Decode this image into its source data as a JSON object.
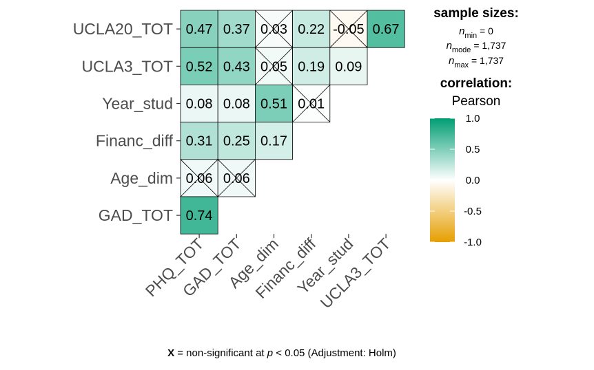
{
  "chart_data": {
    "type": "heatmap",
    "rows": [
      "UCLA20_TOT",
      "UCLA3_TOT",
      "Year_stud",
      "Financ_diff",
      "Age_dim",
      "GAD_TOT"
    ],
    "columns": [
      "PHQ_TOT",
      "GAD_TOT",
      "Age_dim",
      "Financ_diff",
      "Year_stud",
      "UCLA3_TOT"
    ],
    "cells": [
      {
        "row": 0,
        "col": 0,
        "value": 0.47,
        "label": "0.47",
        "nonsig": false
      },
      {
        "row": 0,
        "col": 1,
        "value": 0.37,
        "label": "0.37",
        "nonsig": false
      },
      {
        "row": 0,
        "col": 2,
        "value": 0.03,
        "label": "0.03",
        "nonsig": true
      },
      {
        "row": 0,
        "col": 3,
        "value": 0.22,
        "label": "0.22",
        "nonsig": false
      },
      {
        "row": 0,
        "col": 4,
        "value": -0.05,
        "label": "-0.05",
        "nonsig": true
      },
      {
        "row": 0,
        "col": 5,
        "value": 0.67,
        "label": "0.67",
        "nonsig": false
      },
      {
        "row": 1,
        "col": 0,
        "value": 0.52,
        "label": "0.52",
        "nonsig": false
      },
      {
        "row": 1,
        "col": 1,
        "value": 0.43,
        "label": "0.43",
        "nonsig": false
      },
      {
        "row": 1,
        "col": 2,
        "value": 0.05,
        "label": "0.05",
        "nonsig": true
      },
      {
        "row": 1,
        "col": 3,
        "value": 0.19,
        "label": "0.19",
        "nonsig": false
      },
      {
        "row": 1,
        "col": 4,
        "value": 0.09,
        "label": "0.09",
        "nonsig": false
      },
      {
        "row": 2,
        "col": 0,
        "value": 0.08,
        "label": "0.08",
        "nonsig": false
      },
      {
        "row": 2,
        "col": 1,
        "value": 0.08,
        "label": "0.08",
        "nonsig": false
      },
      {
        "row": 2,
        "col": 2,
        "value": 0.51,
        "label": "0.51",
        "nonsig": false
      },
      {
        "row": 2,
        "col": 3,
        "value": 0.01,
        "label": "0.01",
        "nonsig": true
      },
      {
        "row": 3,
        "col": 0,
        "value": 0.31,
        "label": "0.31",
        "nonsig": false
      },
      {
        "row": 3,
        "col": 1,
        "value": 0.25,
        "label": "0.25",
        "nonsig": false
      },
      {
        "row": 3,
        "col": 2,
        "value": 0.17,
        "label": "0.17",
        "nonsig": false
      },
      {
        "row": 4,
        "col": 0,
        "value": 0.06,
        "label": "0.06",
        "nonsig": true
      },
      {
        "row": 4,
        "col": 1,
        "value": 0.06,
        "label": "0.06",
        "nonsig": true
      },
      {
        "row": 5,
        "col": 0,
        "value": 0.74,
        "label": "0.74",
        "nonsig": false
      }
    ],
    "colors": {
      "low": "#E69F00",
      "mid": "#FFFFFF",
      "high": "#009E73"
    },
    "scale_range": [
      -1.0,
      1.0
    ],
    "legend": {
      "sample_title": "sample sizes:",
      "n_min": {
        "sym": "n",
        "sub": "min",
        "rest": " = 0"
      },
      "n_mode": {
        "sym": "n",
        "sub": "mode",
        "rest": " = 1,737"
      },
      "n_max": {
        "sym": "n",
        "sub": "max",
        "rest": " = 1,737"
      },
      "corr_title": "correlation:",
      "corr_sub": "Pearson",
      "ticks": [
        {
          "value": 1.0,
          "label": "1.0"
        },
        {
          "value": 0.5,
          "label": "0.5"
        },
        {
          "value": 0.0,
          "label": "0.0"
        },
        {
          "value": -0.5,
          "label": "-0.5"
        },
        {
          "value": -1.0,
          "label": "-1.0"
        }
      ]
    },
    "caption": {
      "bold": "X",
      "part1": " = non-significant at ",
      "p": "p",
      "part2": " < 0.05 (Adjustment: Holm)"
    }
  }
}
